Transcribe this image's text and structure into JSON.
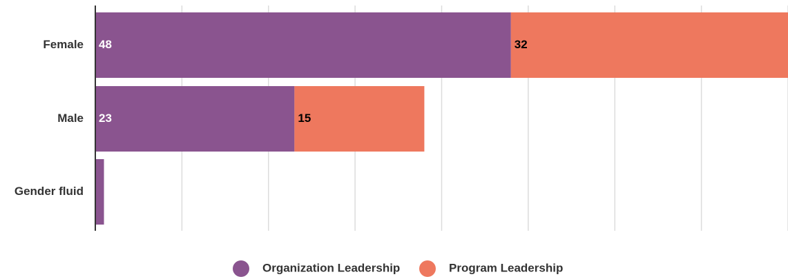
{
  "chart_data": {
    "type": "stacked-barh",
    "categories": [
      "Female",
      "Male",
      "Gender fluid"
    ],
    "series": [
      {
        "name": "Organization Leadership",
        "color": "#8a548f",
        "values": [
          48,
          23,
          1
        ]
      },
      {
        "name": "Program Leadership",
        "color": "#ee785e",
        "values": [
          32,
          15,
          0
        ]
      }
    ],
    "xlim": [
      0,
      80
    ],
    "xticks": [
      0,
      10,
      20,
      30,
      40,
      50,
      60,
      70,
      80
    ],
    "grid": true,
    "legend": "bottom"
  }
}
